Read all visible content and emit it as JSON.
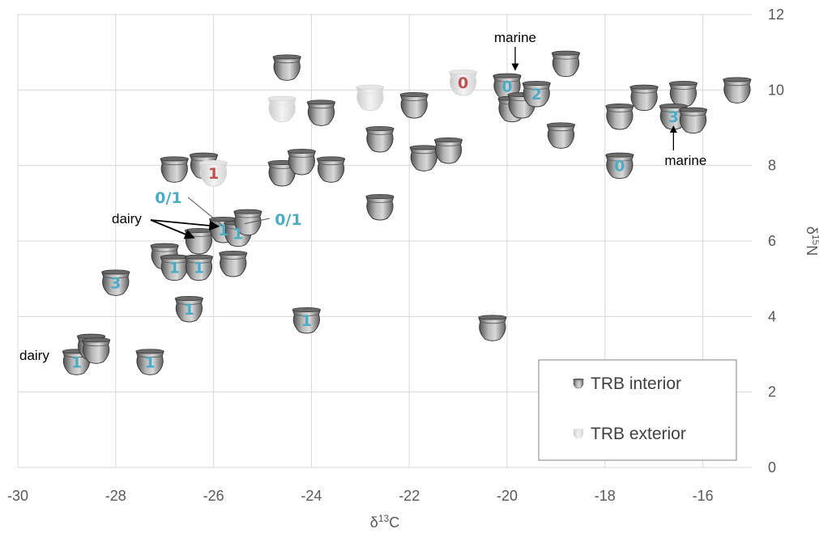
{
  "chart_data": {
    "type": "scatter",
    "xlabel": "δ13C",
    "ylabel": "δ15N",
    "xlim": [
      -30,
      -15
    ],
    "ylim": [
      0,
      12
    ],
    "xticks": [
      -30,
      -28,
      -26,
      -24,
      -22,
      -20,
      -18,
      -16
    ],
    "yticks": [
      0,
      2,
      4,
      6,
      8,
      10,
      12
    ],
    "grid": true,
    "legend_position": "bottom-right",
    "colors": {
      "count_teal": "#4bacc6",
      "count_red": "#c0504d",
      "grid": "#d9d9d9"
    },
    "series": [
      {
        "name": "TRB interior",
        "marker": "pot-icon-dark",
        "points": [
          {
            "x": -28.8,
            "y": 2.8,
            "label": "1"
          },
          {
            "x": -28.5,
            "y": 3.2,
            "label": ""
          },
          {
            "x": -28.4,
            "y": 3.1,
            "label": ""
          },
          {
            "x": -27.3,
            "y": 2.8,
            "label": "1"
          },
          {
            "x": -28.0,
            "y": 4.9,
            "label": "3"
          },
          {
            "x": -26.5,
            "y": 4.2,
            "label": "1"
          },
          {
            "x": -27.0,
            "y": 5.6,
            "label": ""
          },
          {
            "x": -26.8,
            "y": 5.3,
            "label": "1"
          },
          {
            "x": -26.3,
            "y": 5.3,
            "label": "1"
          },
          {
            "x": -25.6,
            "y": 5.4,
            "label": ""
          },
          {
            "x": -26.3,
            "y": 6.0,
            "label": ""
          },
          {
            "x": -25.8,
            "y": 6.3,
            "label": "1"
          },
          {
            "x": -25.5,
            "y": 6.2,
            "label": "1"
          },
          {
            "x": -25.3,
            "y": 6.5,
            "label": ""
          },
          {
            "x": -26.8,
            "y": 7.9,
            "label": ""
          },
          {
            "x": -26.2,
            "y": 8.0,
            "label": ""
          },
          {
            "x": -24.6,
            "y": 7.8,
            "label": ""
          },
          {
            "x": -24.2,
            "y": 8.1,
            "label": ""
          },
          {
            "x": -23.6,
            "y": 7.9,
            "label": ""
          },
          {
            "x": -24.5,
            "y": 10.6,
            "label": ""
          },
          {
            "x": -23.8,
            "y": 9.4,
            "label": ""
          },
          {
            "x": -22.6,
            "y": 8.7,
            "label": ""
          },
          {
            "x": -22.6,
            "y": 6.9,
            "label": ""
          },
          {
            "x": -21.9,
            "y": 9.6,
            "label": ""
          },
          {
            "x": -21.7,
            "y": 8.2,
            "label": ""
          },
          {
            "x": -21.2,
            "y": 8.4,
            "label": ""
          },
          {
            "x": -24.1,
            "y": 3.9,
            "label": "1"
          },
          {
            "x": -20.3,
            "y": 3.7,
            "label": ""
          },
          {
            "x": -20.0,
            "y": 10.1,
            "label": "0"
          },
          {
            "x": -19.9,
            "y": 9.5,
            "label": ""
          },
          {
            "x": -19.7,
            "y": 9.6,
            "label": ""
          },
          {
            "x": -19.4,
            "y": 9.9,
            "label": "2"
          },
          {
            "x": -18.8,
            "y": 10.7,
            "label": ""
          },
          {
            "x": -18.9,
            "y": 8.8,
            "label": ""
          },
          {
            "x": -17.7,
            "y": 9.3,
            "label": ""
          },
          {
            "x": -17.7,
            "y": 8.0,
            "label": "0"
          },
          {
            "x": -17.2,
            "y": 9.8,
            "label": ""
          },
          {
            "x": -16.4,
            "y": 9.9,
            "label": ""
          },
          {
            "x": -16.6,
            "y": 9.3,
            "label": "3"
          },
          {
            "x": -16.2,
            "y": 9.2,
            "label": ""
          },
          {
            "x": -15.3,
            "y": 10.0,
            "label": ""
          }
        ]
      },
      {
        "name": "TRB exterior",
        "marker": "pot-icon-light",
        "points": [
          {
            "x": -24.6,
            "y": 9.5,
            "label": ""
          },
          {
            "x": -22.8,
            "y": 9.8,
            "label": ""
          },
          {
            "x": -26.0,
            "y": 7.8,
            "label": "1"
          },
          {
            "x": -20.9,
            "y": 10.2,
            "label": "0"
          }
        ]
      }
    ],
    "annotations": [
      {
        "text": "marine",
        "target": [
          -20.0,
          10.1
        ]
      },
      {
        "text": "marine",
        "target": [
          -16.6,
          9.3
        ]
      },
      {
        "text": "dairy",
        "targets": [
          [
            -25.8,
            6.3
          ],
          [
            -26.3,
            6.0
          ]
        ]
      },
      {
        "text": "dairy",
        "targets": [
          [
            -28.8,
            2.8
          ]
        ]
      },
      {
        "text": "0/1",
        "target": [
          -25.8,
          6.3
        ]
      },
      {
        "text": "0/1",
        "target": [
          -25.5,
          6.5
        ]
      }
    ]
  }
}
